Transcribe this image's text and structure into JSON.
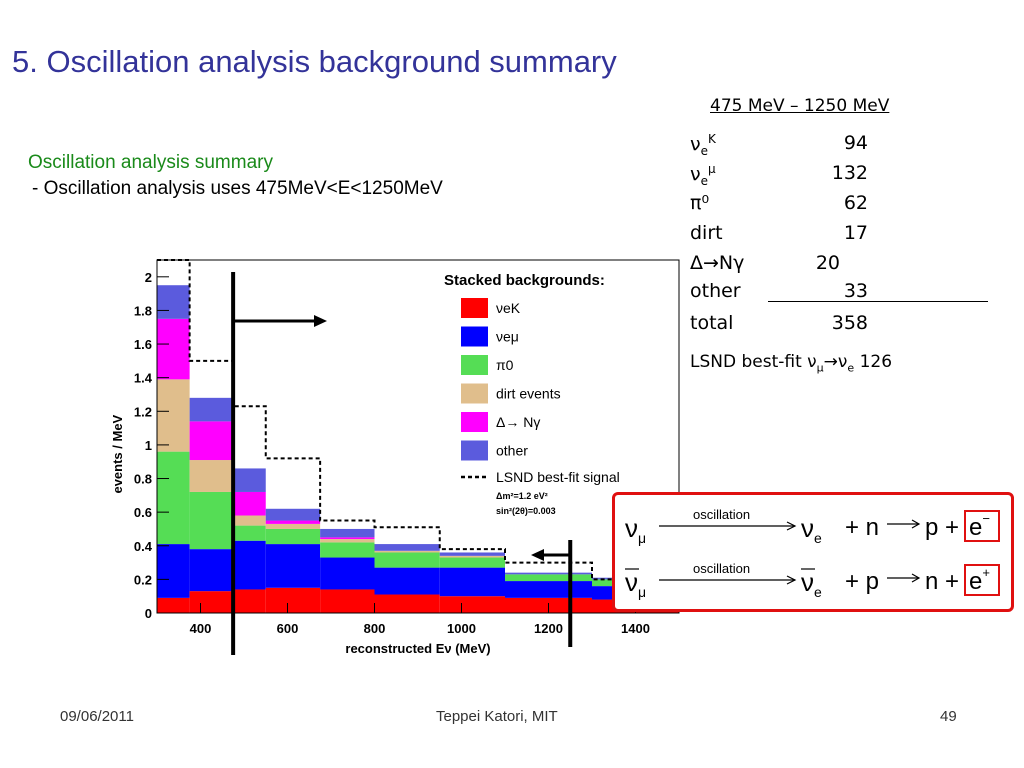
{
  "slide": {
    "title": "5. Oscillation analysis background summary",
    "summary_heading": "Oscillation analysis summary",
    "summary_bullet": "- Oscillation analysis uses 475MeV<E<1250MeV"
  },
  "table": {
    "range": "475 MeV – 1250 MeV",
    "rows": [
      {
        "label": "νeK",
        "value": "94"
      },
      {
        "label": "νeμ",
        "value": "132"
      },
      {
        "label": "π⁰",
        "value": "62"
      },
      {
        "label": "dirt",
        "value": "17"
      },
      {
        "label": "Δ→Nγ",
        "value": "20"
      },
      {
        "label": "other",
        "value": "33"
      },
      {
        "label": "total",
        "value": "358"
      }
    ],
    "lsnd_label": "LSND best-fit νμ→νe",
    "lsnd_value": "126"
  },
  "reactions": {
    "oscillation_label": "oscillation",
    "top": "νμ → νe + n → p + e⁻",
    "bottom": "ν̄μ → ν̄e + p → n + e⁺"
  },
  "footer": {
    "date": "09/06/2011",
    "author": "Teppei Katori, MIT",
    "page": "49"
  },
  "chart_data": {
    "type": "bar",
    "stacked": true,
    "xlabel": "reconstructed Eν (MeV)",
    "ylabel": "events / MeV",
    "xlim": [
      300,
      1500
    ],
    "ylim": [
      0,
      2.1
    ],
    "xticks": [
      400,
      600,
      800,
      1000,
      1200,
      1400
    ],
    "yticks": [
      0,
      0.2,
      0.4,
      0.6,
      0.8,
      1,
      1.2,
      1.4,
      1.6,
      1.8,
      2
    ],
    "bin_edges": [
      300,
      375,
      475,
      550,
      675,
      800,
      950,
      1100,
      1300,
      1500
    ],
    "legend_title": "Stacked backgrounds:",
    "legend_position": "top-right",
    "series": [
      {
        "name": "νeK",
        "color": "#ff0000",
        "values": [
          0.09,
          0.13,
          0.14,
          0.15,
          0.14,
          0.11,
          0.1,
          0.09,
          0.08
        ]
      },
      {
        "name": "νeμ",
        "color": "#0000ff",
        "values": [
          0.32,
          0.25,
          0.29,
          0.26,
          0.19,
          0.16,
          0.17,
          0.1,
          0.08
        ]
      },
      {
        "name": "π0",
        "color": "#55dd55",
        "values": [
          0.55,
          0.34,
          0.09,
          0.09,
          0.09,
          0.09,
          0.06,
          0.04,
          0.04
        ]
      },
      {
        "name": "dirt events",
        "color": "#e0be8c",
        "values": [
          0.43,
          0.19,
          0.06,
          0.03,
          0.02,
          0.01,
          0.01,
          0,
          0
        ]
      },
      {
        "name": "Δ→ Nγ",
        "color": "#ff00ff",
        "values": [
          0.36,
          0.23,
          0.14,
          0.02,
          0.01,
          0,
          0,
          0,
          0
        ]
      },
      {
        "name": "other",
        "color": "#5b5bdd",
        "values": [
          0.2,
          0.14,
          0.14,
          0.07,
          0.05,
          0.04,
          0.02,
          0.01,
          0.01
        ]
      }
    ],
    "signal": {
      "name": "LSND best-fit signal",
      "values": [
        2.18,
        1.5,
        1.23,
        0.92,
        0.55,
        0.51,
        0.38,
        0.3,
        0.2
      ]
    },
    "legend_annotation": [
      "Δm²=1.2 eV²",
      "sin²(2θ)=0.003"
    ],
    "energy_window": [
      475,
      1250
    ]
  }
}
